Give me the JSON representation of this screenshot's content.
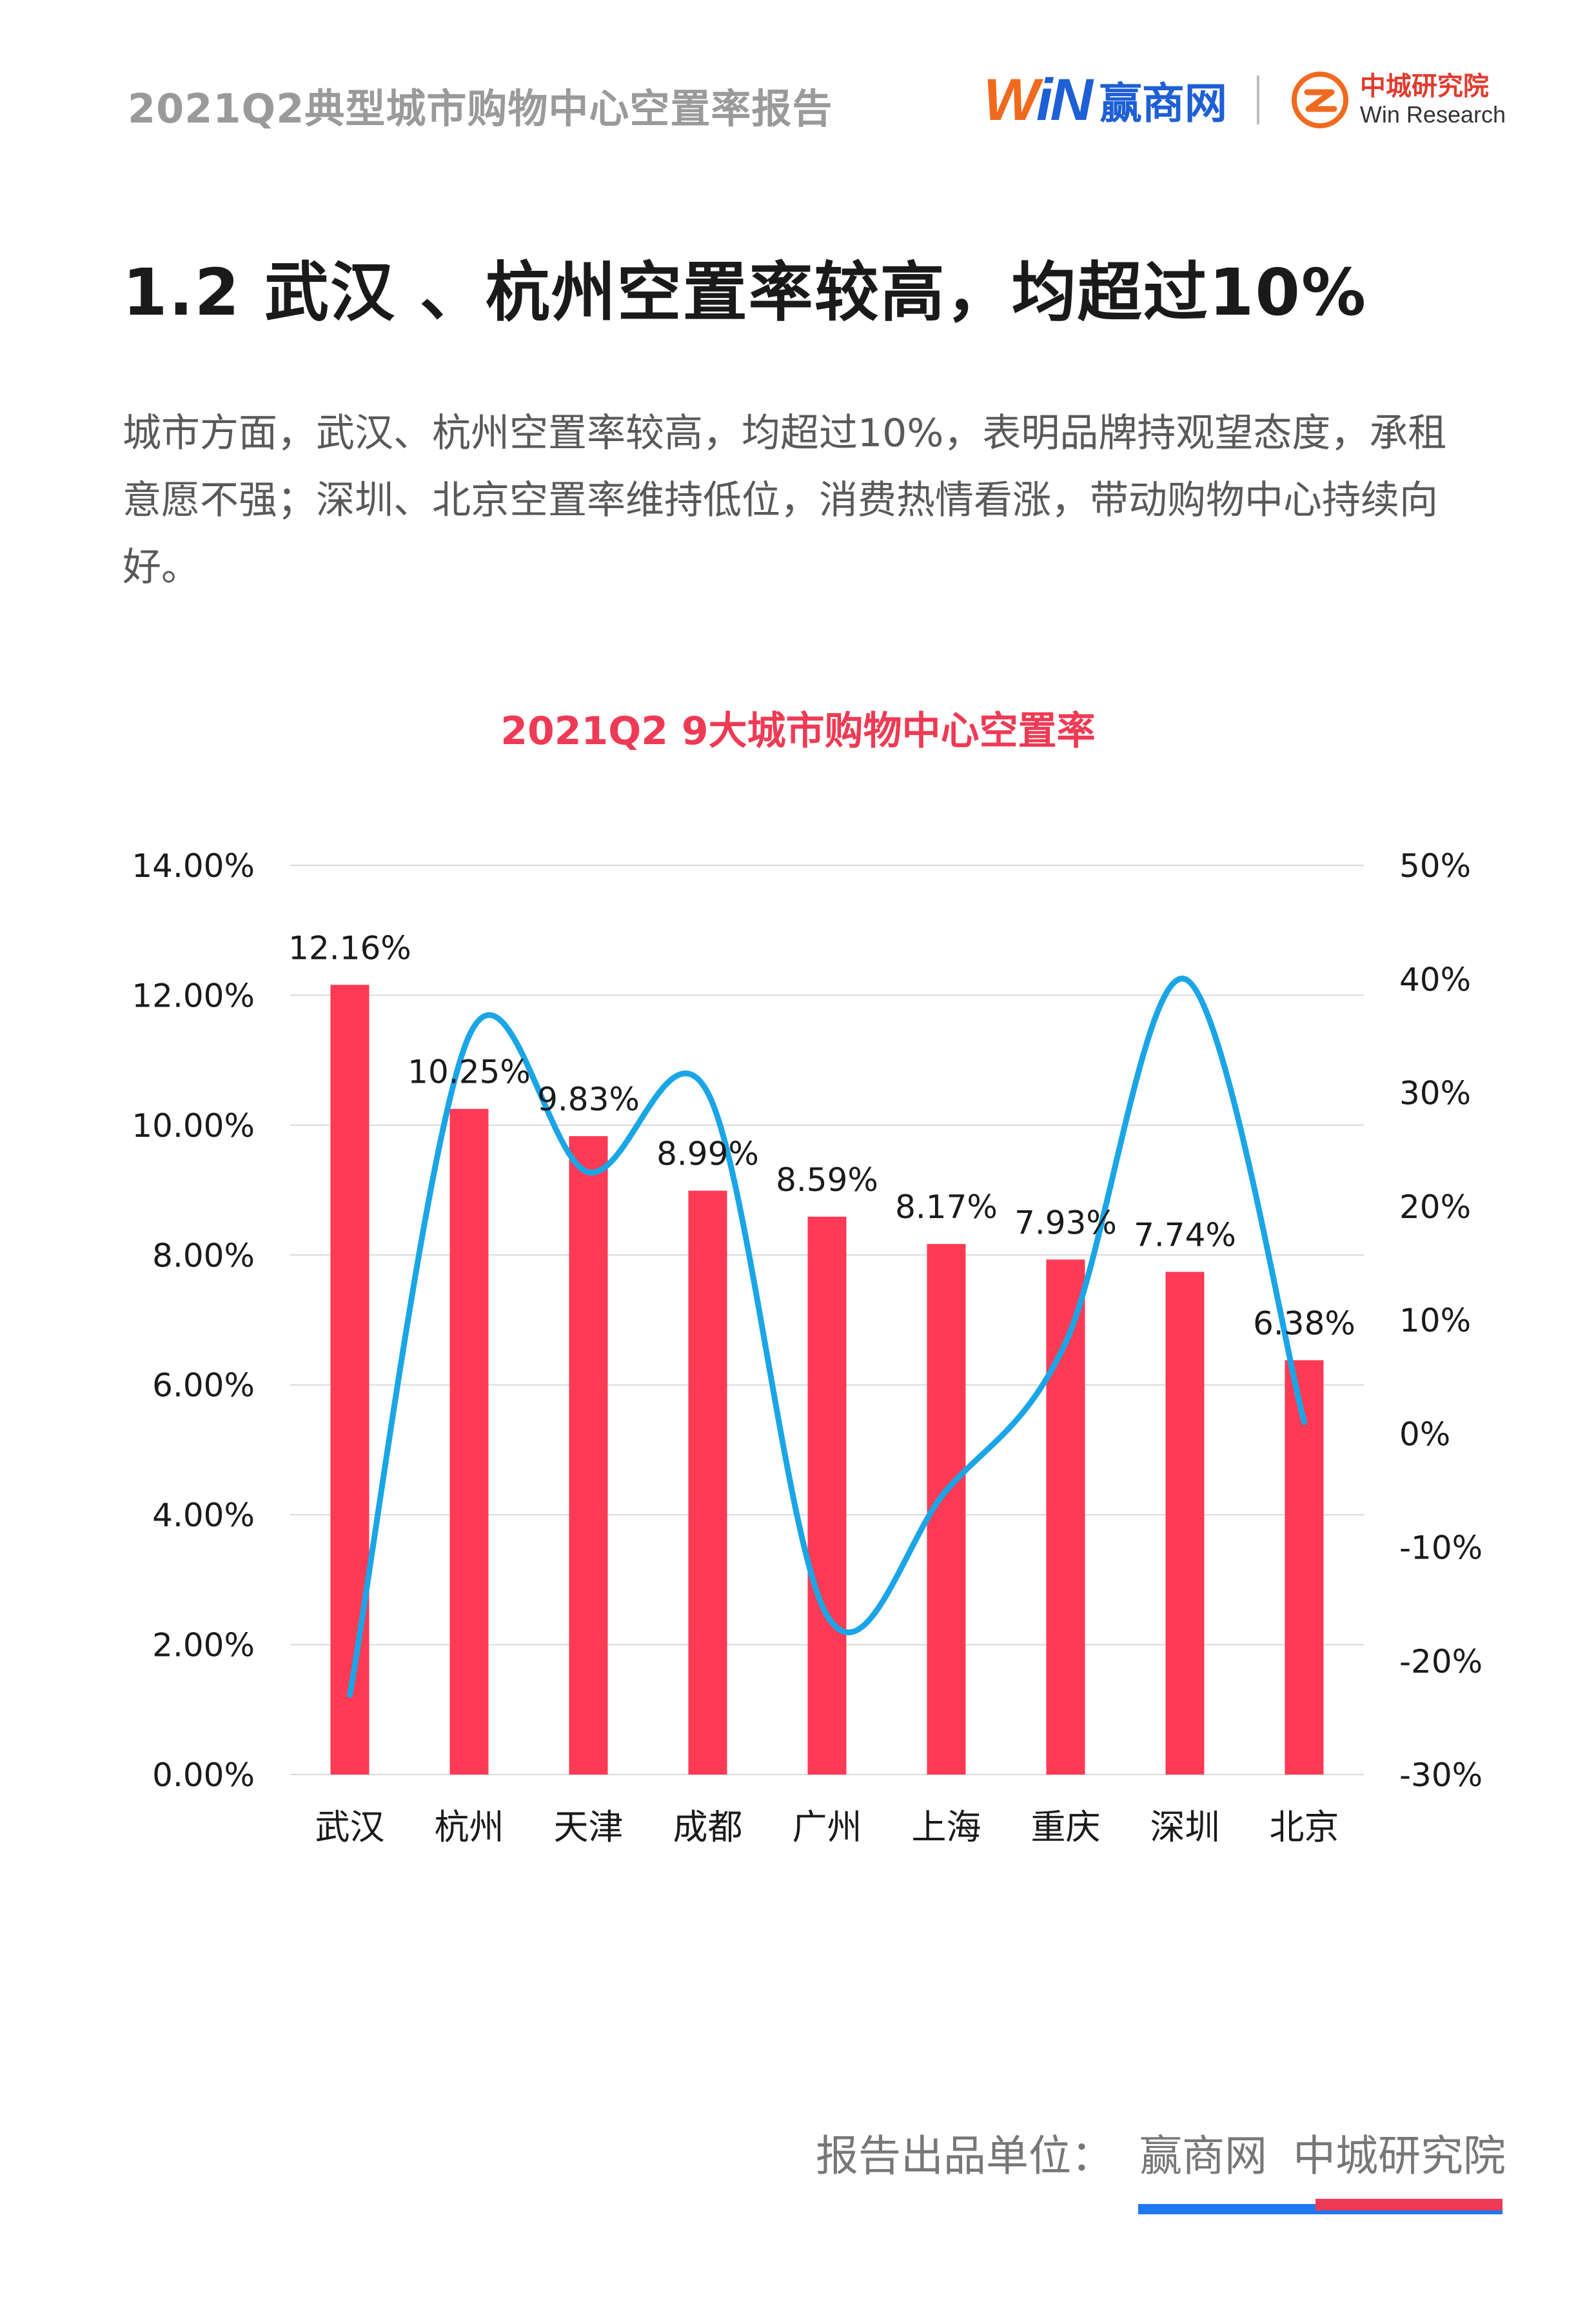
{
  "header": {
    "report_title": "2021Q2典型城市购物中心空置率报告"
  },
  "logos": {
    "win_w": "W",
    "win_n": "iN",
    "win_name": "赢商网",
    "zc_name_cn": "中城研究院",
    "zc_name_en": "Win Research"
  },
  "section": {
    "title": "1.2  武汉 、杭州空置率较高，均超过10%",
    "body": "城市方面，武汉、杭州空置率较高，均超过10%，表明品牌持观望态度，承租意愿不强；深圳、北京空置率维持低位，消费热情看涨，带动购物中心持续向好。"
  },
  "chart_data": {
    "type": "bar",
    "title": "2021Q2  9大城市购物中心空置率",
    "categories": [
      "武汉",
      "杭州",
      "天津",
      "成都",
      "广州",
      "上海",
      "重庆",
      "深圳",
      "北京"
    ],
    "series": [
      {
        "values": [
          12.16,
          10.25,
          9.83,
          8.99,
          8.59,
          8.17,
          7.93,
          7.74,
          6.38
        ],
        "axis": "left",
        "kind": "bar",
        "color": "#ff3a55",
        "data_labels": [
          "12.16%",
          "10.25%",
          "9.83%",
          "8.99%",
          "8.59%",
          "8.17%",
          "7.93%",
          "7.74%",
          "6.38%"
        ]
      },
      {
        "values": [
          -23,
          35,
          23,
          30,
          -16,
          -5,
          8,
          40,
          1
        ],
        "axis": "right",
        "kind": "line",
        "smooth": true,
        "color": "#1aa6e6"
      }
    ],
    "y_left": {
      "min": 0,
      "max": 14,
      "ticks": [
        "0.00%",
        "2.00%",
        "4.00%",
        "6.00%",
        "8.00%",
        "10.00%",
        "12.00%",
        "14.00%"
      ]
    },
    "y_right": {
      "min": -30,
      "max": 50,
      "ticks": [
        "-30%",
        "-20%",
        "-10%",
        "0%",
        "10%",
        "20%",
        "30%",
        "40%",
        "50%"
      ]
    },
    "grid": true
  },
  "footer": {
    "label": "报告出品单位：",
    "org1": "赢商网",
    "org2": "中城研究院"
  }
}
